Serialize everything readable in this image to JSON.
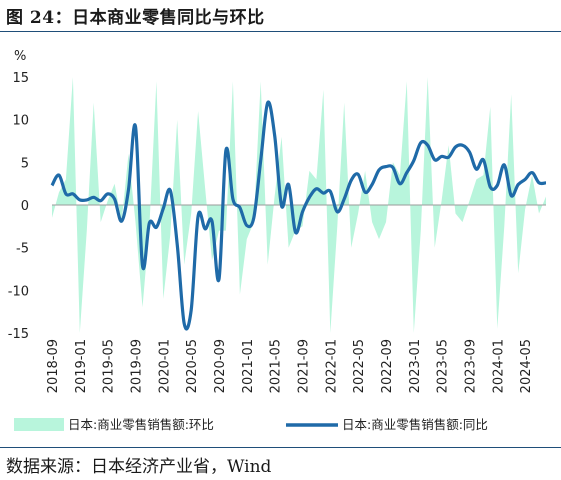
{
  "header": {
    "title": "图 24：日本商业零售同比与环比"
  },
  "footer": {
    "source": "数据来源：日本经济产业省，Wind"
  },
  "chart_data": {
    "type": "line",
    "title": "",
    "unit_label": "%",
    "ylim": [
      -15,
      15
    ],
    "yticks": [
      15,
      10,
      5,
      0,
      -5,
      -10,
      -15
    ],
    "xtick_labels": [
      "2018-09",
      "2019-01",
      "2019-05",
      "2019-09",
      "2020-01",
      "2020-05",
      "2020-09",
      "2021-01",
      "2021-05",
      "2021-09",
      "2022-01",
      "2022-05",
      "2022-09",
      "2023-01",
      "2023-05",
      "2023-09",
      "2024-01",
      "2024-05"
    ],
    "x": [
      "2018-09",
      "2018-10",
      "2018-11",
      "2018-12",
      "2019-01",
      "2019-02",
      "2019-03",
      "2019-04",
      "2019-05",
      "2019-06",
      "2019-07",
      "2019-08",
      "2019-09",
      "2019-10",
      "2019-11",
      "2019-12",
      "2020-01",
      "2020-02",
      "2020-03",
      "2020-04",
      "2020-05",
      "2020-06",
      "2020-07",
      "2020-08",
      "2020-09",
      "2020-10",
      "2020-11",
      "2020-12",
      "2021-01",
      "2021-02",
      "2021-03",
      "2021-04",
      "2021-05",
      "2021-06",
      "2021-07",
      "2021-08",
      "2021-09",
      "2021-10",
      "2021-11",
      "2021-12",
      "2022-01",
      "2022-02",
      "2022-03",
      "2022-04",
      "2022-05",
      "2022-06",
      "2022-07",
      "2022-08",
      "2022-09",
      "2022-10",
      "2022-11",
      "2022-12",
      "2023-01",
      "2023-02",
      "2023-03",
      "2023-04",
      "2023-05",
      "2023-06",
      "2023-07",
      "2023-08",
      "2023-09",
      "2023-10",
      "2023-11",
      "2023-12",
      "2024-01",
      "2024-02",
      "2024-03",
      "2024-04",
      "2024-05",
      "2024-06",
      "2024-07",
      "2024-08"
    ],
    "series": [
      {
        "name": "日本:商业零售销售额:环比",
        "style": "area",
        "color": "#b8f5dc",
        "values": [
          -1.5,
          1.5,
          3,
          15,
          -15,
          -3,
          12,
          -2,
          0.5,
          2.5,
          -2,
          6,
          -2,
          -12,
          -2.5,
          14.5,
          -11,
          -3.5,
          10,
          -7,
          -1,
          11,
          2,
          -6.5,
          -3,
          -3,
          14.5,
          -10.5,
          -4,
          -2,
          14.5,
          -7,
          1,
          8,
          -5,
          -3,
          -2.5,
          4,
          3,
          13.5,
          -15,
          -2.5,
          12,
          -5,
          -1,
          4,
          -2,
          -4,
          -2,
          5,
          3.5,
          14.5,
          -15,
          -3,
          15,
          -5,
          0.5,
          7,
          -1,
          -2,
          0.5,
          3,
          3.5,
          11.5,
          -14.5,
          -2.5,
          13,
          -8,
          -0.5,
          3.5,
          -1,
          1
        ]
      },
      {
        "name": "日本:商业零售销售额:同比",
        "style": "line",
        "color": "#1f6aa8",
        "values": [
          2.3,
          3.5,
          1.3,
          1.3,
          0.6,
          0.6,
          0.9,
          0.5,
          1.3,
          0.7,
          -1.9,
          1.8,
          9.2,
          -7.1,
          -2.1,
          -2.6,
          -0.4,
          1.7,
          -4.6,
          -13.9,
          -12.3,
          -1.3,
          -2.8,
          -1.9,
          -8.7,
          6.4,
          0.7,
          -0.3,
          -2.4,
          -1.5,
          5.2,
          12,
          8.2,
          -0.1,
          2.4,
          -3.2,
          -0.8,
          0.9,
          1.9,
          1.4,
          1.6,
          -0.8,
          0.7,
          2.9,
          3.6,
          1.5,
          2.4,
          4.1,
          4.5,
          4.4,
          2.5,
          3.8,
          5.2,
          7.3,
          7,
          5.3,
          5.7,
          5.6,
          6.8,
          7,
          6.2,
          4.2,
          5.3,
          2.1,
          2.3,
          4.7,
          1.1,
          2.4,
          3,
          3.8,
          2.6,
          2.6
        ]
      }
    ],
    "legend": [
      {
        "label": "日本:商业零售销售额:环比",
        "kind": "area"
      },
      {
        "label": "日本:商业零售销售额:同比",
        "kind": "line"
      }
    ],
    "legend_position": "bottom",
    "grid": false
  }
}
